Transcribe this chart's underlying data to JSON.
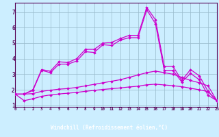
{
  "xlabel": "Windchill (Refroidissement éolien,°C)",
  "xlim": [
    0,
    23
  ],
  "ylim": [
    0.9,
    7.6
  ],
  "yticks": [
    1,
    2,
    3,
    4,
    5,
    6,
    7
  ],
  "xticks": [
    0,
    1,
    2,
    3,
    4,
    5,
    6,
    7,
    8,
    9,
    10,
    11,
    12,
    13,
    14,
    15,
    16,
    17,
    18,
    19,
    20,
    21,
    22,
    23
  ],
  "bg_color": "#cceeff",
  "plot_bg": "#cceeff",
  "line_color": "#cc00cc",
  "grid_color": "#99bbcc",
  "xlabel_bg": "#550055",
  "xlabel_fg": "#ffffff",
  "tick_color": "#550055",
  "curves": [
    {
      "x": [
        0,
        1,
        2,
        3,
        4,
        5,
        6,
        7,
        8,
        9,
        10,
        11,
        12,
        13,
        14,
        15,
        16,
        17,
        18,
        19,
        20,
        21,
        22,
        23
      ],
      "y": [
        1.72,
        1.72,
        2.0,
        3.3,
        3.2,
        3.8,
        3.75,
        4.0,
        4.6,
        4.6,
        5.0,
        5.05,
        5.3,
        5.5,
        5.5,
        7.3,
        6.5,
        3.5,
        3.5,
        2.6,
        3.3,
        2.9,
        1.9,
        1.3
      ]
    },
    {
      "x": [
        0,
        1,
        2,
        3,
        4,
        5,
        6,
        7,
        8,
        9,
        10,
        11,
        12,
        13,
        14,
        15,
        16,
        17,
        18,
        19,
        20,
        21,
        22,
        23
      ],
      "y": [
        1.72,
        1.72,
        1.95,
        3.25,
        3.1,
        3.65,
        3.65,
        3.85,
        4.45,
        4.4,
        4.9,
        4.85,
        5.2,
        5.35,
        5.35,
        7.15,
        6.25,
        3.25,
        3.25,
        2.5,
        3.05,
        2.65,
        1.65,
        1.3
      ]
    },
    {
      "x": [
        0,
        1,
        2,
        3,
        4,
        5,
        6,
        7,
        8,
        9,
        10,
        11,
        12,
        13,
        14,
        15,
        16,
        17,
        18,
        19,
        20,
        21,
        22,
        23
      ],
      "y": [
        1.72,
        1.72,
        1.75,
        1.9,
        1.97,
        2.04,
        2.08,
        2.15,
        2.25,
        2.35,
        2.45,
        2.55,
        2.65,
        2.8,
        2.95,
        3.1,
        3.2,
        3.1,
        3.0,
        2.8,
        2.6,
        2.45,
        2.25,
        1.3
      ]
    },
    {
      "x": [
        0,
        1,
        2,
        3,
        4,
        5,
        6,
        7,
        8,
        9,
        10,
        11,
        12,
        13,
        14,
        15,
        16,
        17,
        18,
        19,
        20,
        21,
        22,
        23
      ],
      "y": [
        1.72,
        1.3,
        1.42,
        1.58,
        1.67,
        1.73,
        1.78,
        1.83,
        1.9,
        1.96,
        2.02,
        2.07,
        2.12,
        2.18,
        2.23,
        2.32,
        2.36,
        2.31,
        2.26,
        2.2,
        2.1,
        2.0,
        1.88,
        1.3
      ]
    }
  ]
}
